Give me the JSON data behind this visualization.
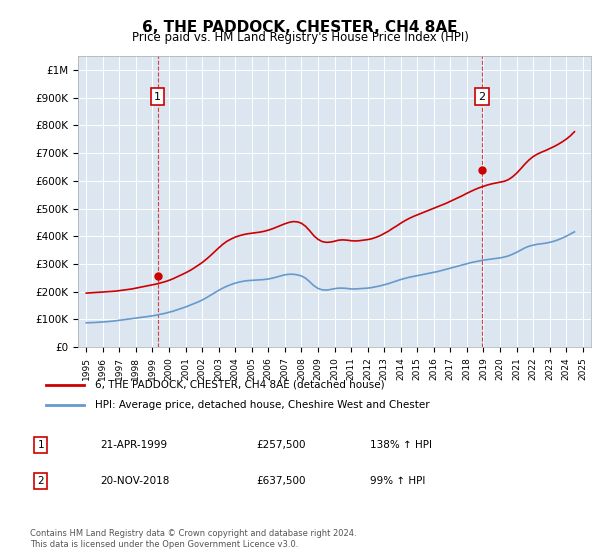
{
  "title": "6, THE PADDOCK, CHESTER, CH4 8AE",
  "subtitle": "Price paid vs. HM Land Registry's House Price Index (HPI)",
  "legend_line1": "6, THE PADDOCK, CHESTER, CH4 8AE (detached house)",
  "legend_line2": "HPI: Average price, detached house, Cheshire West and Chester",
  "annotation1": {
    "label": "1",
    "date_str": "21-APR-1999",
    "price_str": "£257,500",
    "hpi_str": "138% ↑ HPI"
  },
  "annotation2": {
    "label": "2",
    "date_str": "20-NOV-2018",
    "price_str": "£637,500",
    "hpi_str": "99% ↑ HPI"
  },
  "footer": "Contains HM Land Registry data © Crown copyright and database right 2024.\nThis data is licensed under the Open Government Licence v3.0.",
  "bg_color": "#dce6f1",
  "plot_bg_color": "#dce6f1",
  "red_color": "#cc0000",
  "blue_color": "#6699cc",
  "marker1_x": 1999.31,
  "marker1_y": 257500,
  "marker2_x": 2018.89,
  "marker2_y": 637500,
  "vline1_x": 1999.31,
  "vline2_x": 2018.89,
  "ylim": [
    0,
    1050000
  ],
  "xlim": [
    1994.5,
    2025.5
  ],
  "hpi_x": [
    1995,
    1995.25,
    1995.5,
    1995.75,
    1996,
    1996.25,
    1996.5,
    1996.75,
    1997,
    1997.25,
    1997.5,
    1997.75,
    1998,
    1998.25,
    1998.5,
    1998.75,
    1999,
    1999.25,
    1999.5,
    1999.75,
    2000,
    2000.25,
    2000.5,
    2000.75,
    2001,
    2001.25,
    2001.5,
    2001.75,
    2002,
    2002.25,
    2002.5,
    2002.75,
    2003,
    2003.25,
    2003.5,
    2003.75,
    2004,
    2004.25,
    2004.5,
    2004.75,
    2005,
    2005.25,
    2005.5,
    2005.75,
    2006,
    2006.25,
    2006.5,
    2006.75,
    2007,
    2007.25,
    2007.5,
    2007.75,
    2008,
    2008.25,
    2008.5,
    2008.75,
    2009,
    2009.25,
    2009.5,
    2009.75,
    2010,
    2010.25,
    2010.5,
    2010.75,
    2011,
    2011.25,
    2011.5,
    2011.75,
    2012,
    2012.25,
    2012.5,
    2012.75,
    2013,
    2013.25,
    2013.5,
    2013.75,
    2014,
    2014.25,
    2014.5,
    2014.75,
    2015,
    2015.25,
    2015.5,
    2015.75,
    2016,
    2016.25,
    2016.5,
    2016.75,
    2017,
    2017.25,
    2017.5,
    2017.75,
    2018,
    2018.25,
    2018.5,
    2018.75,
    2019,
    2019.25,
    2019.5,
    2019.75,
    2020,
    2020.25,
    2020.5,
    2020.75,
    2021,
    2021.25,
    2021.5,
    2021.75,
    2022,
    2022.25,
    2022.5,
    2022.75,
    2023,
    2023.25,
    2023.5,
    2023.75,
    2024,
    2024.25,
    2024.5
  ],
  "hpi_y": [
    88000,
    88500,
    89000,
    90000,
    91000,
    92000,
    93500,
    95000,
    97000,
    99000,
    101000,
    103000,
    105000,
    107000,
    109000,
    111000,
    113000,
    116000,
    119000,
    122000,
    126000,
    130000,
    135000,
    140000,
    145000,
    151000,
    157000,
    163000,
    170000,
    178000,
    187000,
    196000,
    205000,
    213000,
    220000,
    226000,
    231000,
    235000,
    238000,
    240000,
    241000,
    242000,
    243000,
    244000,
    246000,
    249000,
    253000,
    257000,
    261000,
    263000,
    263000,
    261000,
    257000,
    249000,
    236000,
    222000,
    212000,
    207000,
    206000,
    208000,
    211000,
    213000,
    213000,
    212000,
    210000,
    210000,
    211000,
    212000,
    213000,
    215000,
    218000,
    221000,
    225000,
    229000,
    234000,
    239000,
    244000,
    248000,
    252000,
    255000,
    258000,
    261000,
    264000,
    267000,
    270000,
    273000,
    277000,
    281000,
    285000,
    289000,
    293000,
    297000,
    301000,
    305000,
    308000,
    311000,
    314000,
    316000,
    318000,
    320000,
    322000,
    325000,
    329000,
    335000,
    342000,
    350000,
    358000,
    364000,
    368000,
    371000,
    373000,
    375000,
    378000,
    382000,
    387000,
    393000,
    400000,
    408000,
    416000
  ],
  "red_x": [
    1995,
    1995.25,
    1995.5,
    1995.75,
    1996,
    1996.25,
    1996.5,
    1996.75,
    1997,
    1997.25,
    1997.5,
    1997.75,
    1998,
    1998.25,
    1998.5,
    1998.75,
    1999,
    1999.25,
    1999.5,
    1999.75,
    2000,
    2000.25,
    2000.5,
    2000.75,
    2001,
    2001.25,
    2001.5,
    2001.75,
    2002,
    2002.25,
    2002.5,
    2002.75,
    2003,
    2003.25,
    2003.5,
    2003.75,
    2004,
    2004.25,
    2004.5,
    2004.75,
    2005,
    2005.25,
    2005.5,
    2005.75,
    2006,
    2006.25,
    2006.5,
    2006.75,
    2007,
    2007.25,
    2007.5,
    2007.75,
    2008,
    2008.25,
    2008.5,
    2008.75,
    2009,
    2009.25,
    2009.5,
    2009.75,
    2010,
    2010.25,
    2010.5,
    2010.75,
    2011,
    2011.25,
    2011.5,
    2011.75,
    2012,
    2012.25,
    2012.5,
    2012.75,
    2013,
    2013.25,
    2013.5,
    2013.75,
    2014,
    2014.25,
    2014.5,
    2014.75,
    2015,
    2015.25,
    2015.5,
    2015.75,
    2016,
    2016.25,
    2016.5,
    2016.75,
    2017,
    2017.25,
    2017.5,
    2017.75,
    2018,
    2018.25,
    2018.5,
    2018.75,
    2019,
    2019.25,
    2019.5,
    2019.75,
    2020,
    2020.25,
    2020.5,
    2020.75,
    2021,
    2021.25,
    2021.5,
    2021.75,
    2022,
    2022.25,
    2022.5,
    2022.75,
    2023,
    2023.25,
    2023.5,
    2023.75,
    2024,
    2024.25,
    2024.5
  ],
  "red_y": [
    195000,
    196000,
    197000,
    198000,
    199000,
    200000,
    201000,
    202000,
    204000,
    206000,
    208000,
    210000,
    213000,
    216000,
    219000,
    222000,
    225000,
    228000,
    232000,
    236000,
    241000,
    247000,
    254000,
    261000,
    268000,
    276000,
    285000,
    295000,
    305000,
    317000,
    330000,
    344000,
    358000,
    371000,
    382000,
    390000,
    397000,
    402000,
    406000,
    409000,
    411000,
    413000,
    415000,
    418000,
    422000,
    427000,
    433000,
    439000,
    445000,
    450000,
    453000,
    452000,
    447000,
    436000,
    420000,
    402000,
    389000,
    381000,
    378000,
    379000,
    382000,
    386000,
    387000,
    386000,
    384000,
    383000,
    384000,
    386000,
    388000,
    391000,
    396000,
    402000,
    410000,
    418000,
    428000,
    437000,
    447000,
    456000,
    464000,
    471000,
    477000,
    483000,
    489000,
    495000,
    501000,
    507000,
    513000,
    519000,
    526000,
    533000,
    540000,
    547000,
    555000,
    562000,
    569000,
    575000,
    580000,
    585000,
    589000,
    592000,
    595000,
    598000,
    604000,
    614000,
    627000,
    643000,
    660000,
    675000,
    687000,
    696000,
    703000,
    709000,
    716000,
    723000,
    731000,
    740000,
    750000,
    762000,
    777000
  ]
}
